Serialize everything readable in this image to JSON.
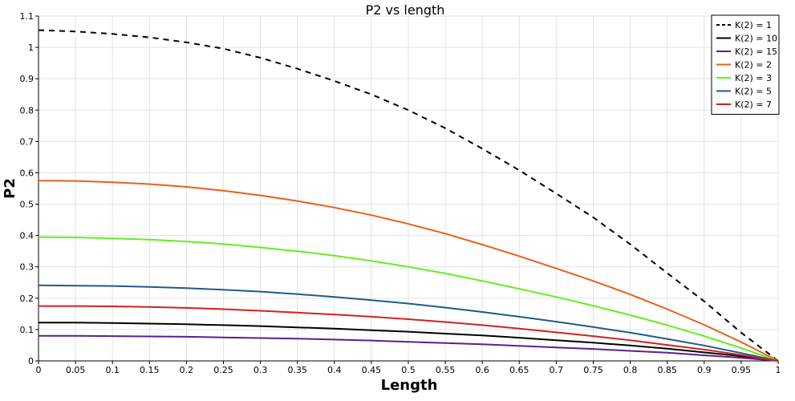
{
  "chart_data": {
    "type": "line",
    "title": "P2 vs length",
    "xlabel": "Length",
    "ylabel": "P2",
    "xlim": [
      0,
      1
    ],
    "ylim": [
      0,
      1.1
    ],
    "grid": true,
    "legend_position": "top-right",
    "x_ticks": [
      "0",
      "0.05",
      "0.1",
      "0.15",
      "0.2",
      "0.25",
      "0.3",
      "0.35",
      "0.4",
      "0.45",
      "0.5",
      "0.55",
      "0.6",
      "0.65",
      "0.7",
      "0.75",
      "0.8",
      "0.85",
      "0.9",
      "0.95",
      "1"
    ],
    "y_ticks": [
      "0",
      "0.1",
      "0.2",
      "0.3",
      "0.4",
      "0.5",
      "0.6",
      "0.7",
      "0.8",
      "0.9",
      "1",
      "1.1"
    ],
    "x": [
      0,
      0.05,
      0.1,
      0.15,
      0.2,
      0.25,
      0.3,
      0.35,
      0.4,
      0.45,
      0.5,
      0.55,
      0.6,
      0.65,
      0.7,
      0.75,
      0.8,
      0.85,
      0.9,
      0.95,
      1
    ],
    "series": [
      {
        "name": "K(2) = 1",
        "color": "#000000",
        "dash": true,
        "values": [
          1.055,
          1.051,
          1.043,
          1.032,
          1.016,
          0.996,
          0.967,
          0.932,
          0.893,
          0.85,
          0.8,
          0.742,
          0.677,
          0.608,
          0.534,
          0.458,
          0.372,
          0.28,
          0.19,
          0.09,
          0.0
        ]
      },
      {
        "name": "K(2) = 10",
        "color": "#000000",
        "dash": false,
        "values": [
          0.122,
          0.122,
          0.121,
          0.119,
          0.117,
          0.114,
          0.111,
          0.107,
          0.103,
          0.098,
          0.093,
          0.087,
          0.081,
          0.074,
          0.066,
          0.058,
          0.049,
          0.039,
          0.027,
          0.015,
          0.0
        ]
      },
      {
        "name": "K(2) = 15",
        "color": "#5b1f8f",
        "dash": false,
        "values": [
          0.08,
          0.08,
          0.079,
          0.078,
          0.077,
          0.075,
          0.073,
          0.071,
          0.068,
          0.065,
          0.061,
          0.057,
          0.053,
          0.048,
          0.043,
          0.038,
          0.032,
          0.026,
          0.018,
          0.01,
          0.0
        ]
      },
      {
        "name": "K(2) = 2",
        "color": "#e8601c",
        "dash": false,
        "values": [
          0.575,
          0.574,
          0.57,
          0.564,
          0.555,
          0.543,
          0.528,
          0.51,
          0.489,
          0.465,
          0.437,
          0.406,
          0.371,
          0.334,
          0.295,
          0.255,
          0.212,
          0.165,
          0.115,
          0.06,
          0.0
        ]
      },
      {
        "name": "K(2) = 3",
        "color": "#66ee22",
        "dash": false,
        "values": [
          0.395,
          0.394,
          0.391,
          0.387,
          0.381,
          0.373,
          0.362,
          0.35,
          0.336,
          0.319,
          0.3,
          0.279,
          0.255,
          0.23,
          0.204,
          0.176,
          0.146,
          0.114,
          0.079,
          0.041,
          0.0
        ]
      },
      {
        "name": "K(2) = 5",
        "color": "#1f5b8a",
        "dash": false,
        "values": [
          0.241,
          0.24,
          0.239,
          0.236,
          0.232,
          0.227,
          0.221,
          0.213,
          0.204,
          0.194,
          0.183,
          0.17,
          0.156,
          0.141,
          0.125,
          0.108,
          0.09,
          0.07,
          0.049,
          0.025,
          0.0
        ]
      },
      {
        "name": "K(2) = 7",
        "color": "#d42020",
        "dash": false,
        "values": [
          0.175,
          0.175,
          0.174,
          0.172,
          0.169,
          0.165,
          0.16,
          0.154,
          0.148,
          0.141,
          0.133,
          0.124,
          0.114,
          0.103,
          0.091,
          0.079,
          0.066,
          0.051,
          0.036,
          0.019,
          0.0
        ]
      }
    ]
  }
}
